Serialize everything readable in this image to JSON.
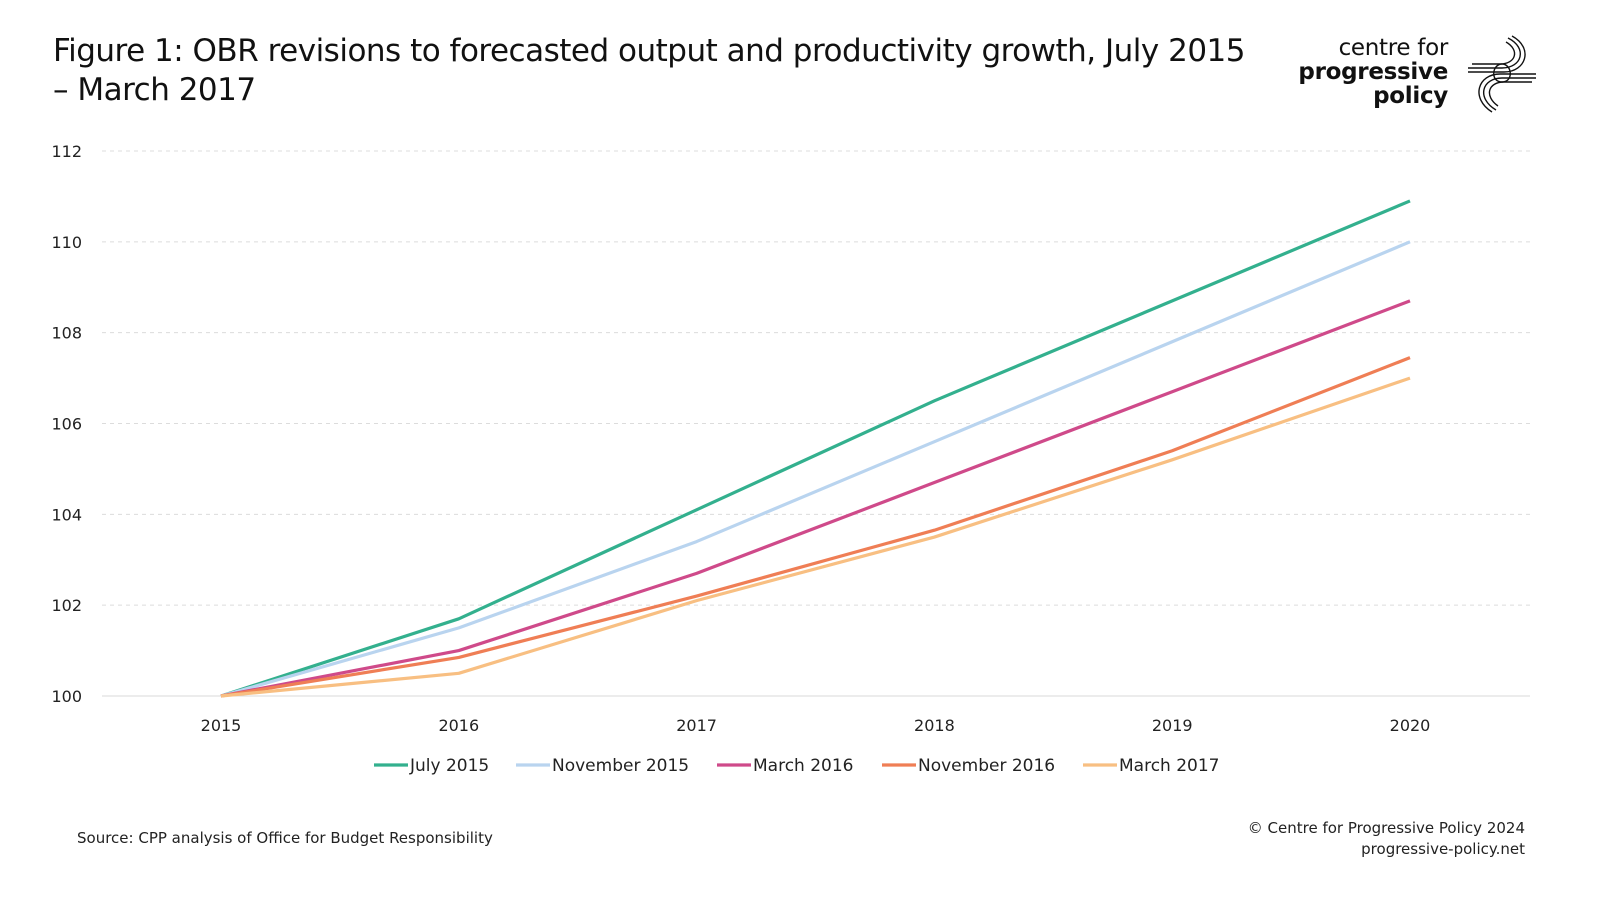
{
  "chart_data": {
    "type": "line",
    "title": "Figure 1: OBR revisions to forecasted output and productivity growth, July 2015 – March 2017",
    "xlabel": "",
    "ylabel": "",
    "x": [
      "2015",
      "2016",
      "2017",
      "2018",
      "2019",
      "2020"
    ],
    "ylim": [
      100,
      112
    ],
    "yticks": [
      "100",
      "102",
      "104",
      "106",
      "108",
      "110",
      "112"
    ],
    "grid": "horizontal dashed",
    "legend_position": "bottom",
    "series": [
      {
        "name": "July 2015",
        "color": "#33b08e",
        "values": [
          100,
          101.7,
          104.1,
          106.5,
          108.7,
          110.9
        ]
      },
      {
        "name": "November 2015",
        "color": "#b9d4ef",
        "values": [
          100,
          101.5,
          103.4,
          105.6,
          107.8,
          110.0
        ]
      },
      {
        "name": "March 2016",
        "color": "#cf4a8a",
        "values": [
          100,
          101.0,
          102.7,
          104.7,
          106.7,
          108.7
        ]
      },
      {
        "name": "November 2016",
        "color": "#ef7e55",
        "values": [
          100,
          100.85,
          102.2,
          103.65,
          105.4,
          107.45
        ]
      },
      {
        "name": "March 2017",
        "color": "#f8bf82",
        "values": [
          100,
          100.5,
          102.1,
          103.5,
          105.2,
          107.0
        ]
      }
    ]
  },
  "logo": {
    "line1": "centre for",
    "line2": "progressive",
    "line3": "policy"
  },
  "footer": {
    "source": "Source: CPP analysis of Office for Budget Responsibility",
    "copyright": "© Centre for Progressive Policy 2024",
    "website": "progressive-policy.net"
  }
}
